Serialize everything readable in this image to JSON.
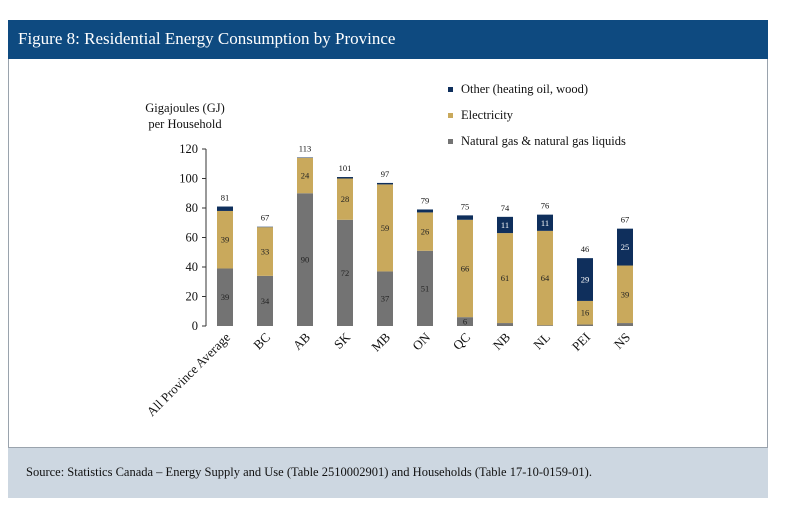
{
  "figure": {
    "title": "Figure 8: Residential Energy Consumption by Province",
    "source": "Source: Statistics Canada – Energy Supply and Use (Table 2510002901) and Households (Table 17-10-0159-01)."
  },
  "colors": {
    "header_bg": "#0e4a80",
    "footer_bg": "#cdd7e1",
    "natural_gas": "#737373",
    "electricity": "#c9a95c",
    "other": "#0f2f5c"
  },
  "chart_data": {
    "type": "bar",
    "stacked": true,
    "ylabel_lines": [
      "Gigajoules (GJ)",
      "per Household"
    ],
    "ylim": [
      0,
      120
    ],
    "yticks": [
      0,
      20,
      40,
      60,
      80,
      100,
      120
    ],
    "grid": false,
    "legend_position": "top-right",
    "categories": [
      "All Province Average",
      "BC",
      "AB",
      "SK",
      "MB",
      "ON",
      "QC",
      "NB",
      "NL",
      "PEI",
      "NS"
    ],
    "totals": [
      81,
      67,
      113,
      101,
      97,
      79,
      75,
      74,
      76,
      46,
      67
    ],
    "series": [
      {
        "name": "Natural gas & natural gas liquids",
        "color": "#737373",
        "values": [
          39,
          34,
          90,
          72,
          37,
          51,
          6,
          2,
          0.5,
          1,
          2
        ],
        "labels": [
          "39",
          "34",
          "90",
          "72",
          "37",
          "51",
          "6",
          "",
          "",
          "",
          ""
        ]
      },
      {
        "name": "Electricity",
        "color": "#c9a95c",
        "values": [
          39,
          33,
          24,
          28,
          59,
          26,
          66,
          61,
          64,
          16,
          39
        ],
        "labels": [
          "39",
          "33",
          "24",
          "28",
          "59",
          "26",
          "66",
          "61",
          "64",
          "16",
          "39"
        ]
      },
      {
        "name": "Other (heating oil, wood)",
        "color": "#0f2f5c",
        "values": [
          3,
          0.3,
          0.3,
          1,
          1,
          2,
          3,
          11,
          11,
          29,
          25
        ],
        "labels": [
          "",
          "",
          "",
          "",
          "",
          "",
          "",
          "11",
          "11",
          "29",
          "25"
        ]
      }
    ],
    "legend_order": [
      "Other (heating oil, wood)",
      "Electricity",
      "Natural gas & natural gas liquids"
    ]
  }
}
